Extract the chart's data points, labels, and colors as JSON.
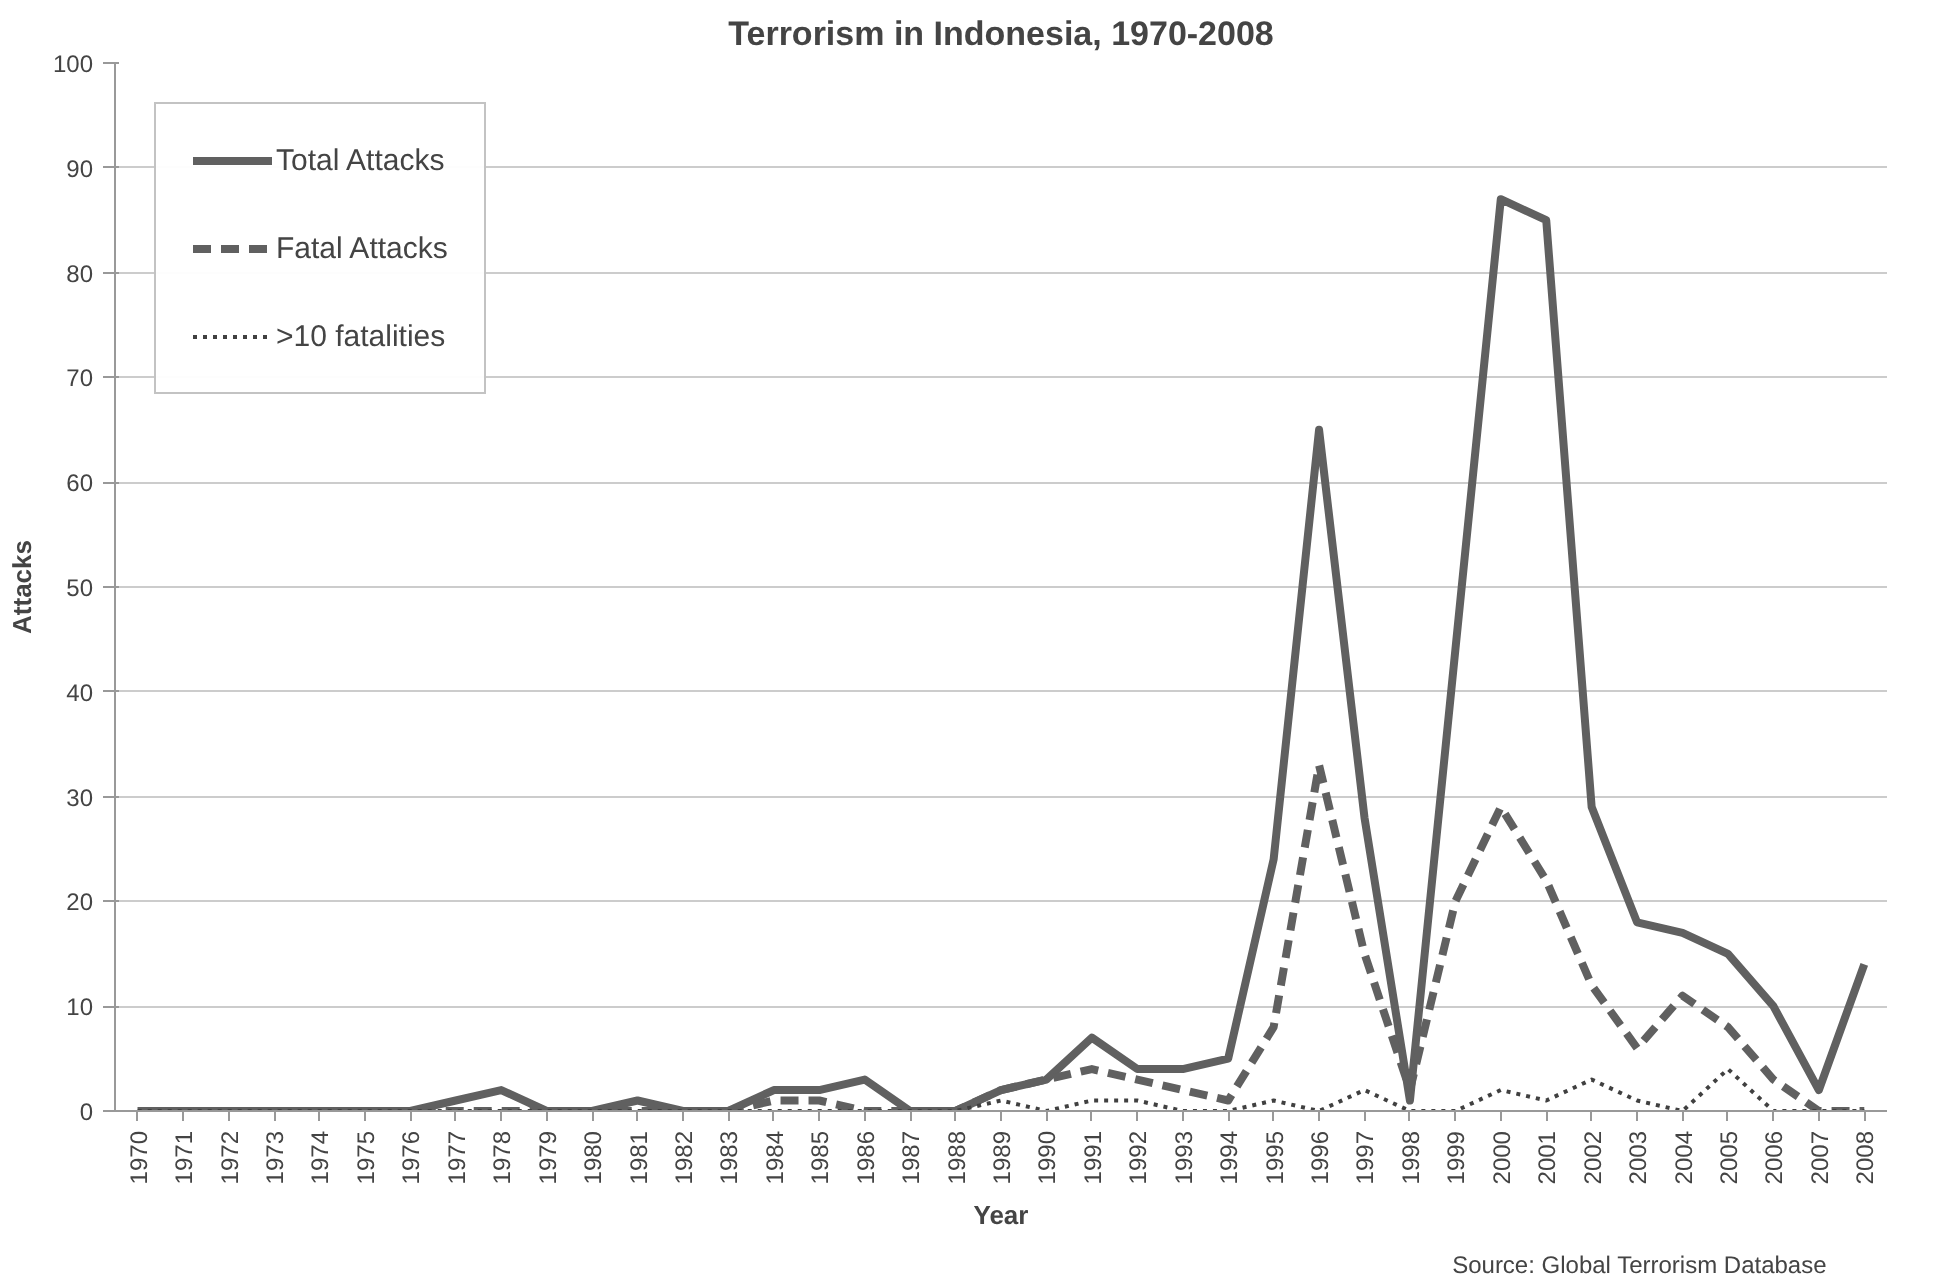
{
  "chart_data": {
    "type": "line",
    "title": "Terrorism in Indonesia, 1970-2008",
    "xlabel": "Year",
    "ylabel": "Attacks",
    "categories": [
      "1970",
      "1971",
      "1972",
      "1973",
      "1974",
      "1975",
      "1976",
      "1977",
      "1978",
      "1979",
      "1980",
      "1981",
      "1982",
      "1983",
      "1984",
      "1985",
      "1986",
      "1987",
      "1988",
      "1989",
      "1990",
      "1991",
      "1992",
      "1993",
      "1994",
      "1995",
      "1996",
      "1997",
      "1998",
      "1999",
      "2000",
      "2001",
      "2002",
      "2003",
      "2004",
      "2005",
      "2006",
      "2007",
      "2008"
    ],
    "series": [
      {
        "name": "Total Attacks",
        "color": "#606060",
        "line_style": "solid",
        "values": [
          0,
          0,
          0,
          0,
          0,
          0,
          0,
          1,
          2,
          0,
          0,
          1,
          0,
          0,
          2,
          2,
          3,
          0,
          0,
          2,
          3,
          7,
          4,
          4,
          5,
          24,
          65,
          28,
          1,
          44,
          87,
          85,
          29,
          18,
          17,
          15,
          10,
          2,
          14
        ]
      },
      {
        "name": "Fatal Attacks",
        "color": "#606060",
        "line_style": "dashed",
        "values": [
          0,
          0,
          0,
          0,
          0,
          0,
          0,
          0,
          0,
          0,
          0,
          0,
          0,
          0,
          1,
          1,
          0,
          0,
          0,
          2,
          3,
          4,
          3,
          2,
          1,
          8,
          33,
          15,
          2,
          20,
          29,
          22,
          12,
          6,
          11,
          8,
          3,
          0,
          0
        ]
      },
      {
        "name": ">10 fatalities",
        "color": "#404040",
        "line_style": "dotted",
        "values": [
          0,
          0,
          0,
          0,
          0,
          0,
          0,
          0,
          0,
          0,
          0,
          0,
          0,
          0,
          0,
          0,
          0,
          0,
          0,
          1,
          0,
          1,
          1,
          0,
          0,
          1,
          0,
          2,
          0,
          0,
          2,
          1,
          3,
          1,
          0,
          4,
          0,
          0,
          0
        ]
      }
    ],
    "ylim": [
      0,
      100
    ],
    "yticks": [
      0,
      10,
      20,
      30,
      40,
      50,
      60,
      70,
      80,
      90,
      100
    ],
    "grid": "y",
    "legend": "top left",
    "marker": "none",
    "annotations": [
      "Source: Global Terrorism Database"
    ]
  }
}
